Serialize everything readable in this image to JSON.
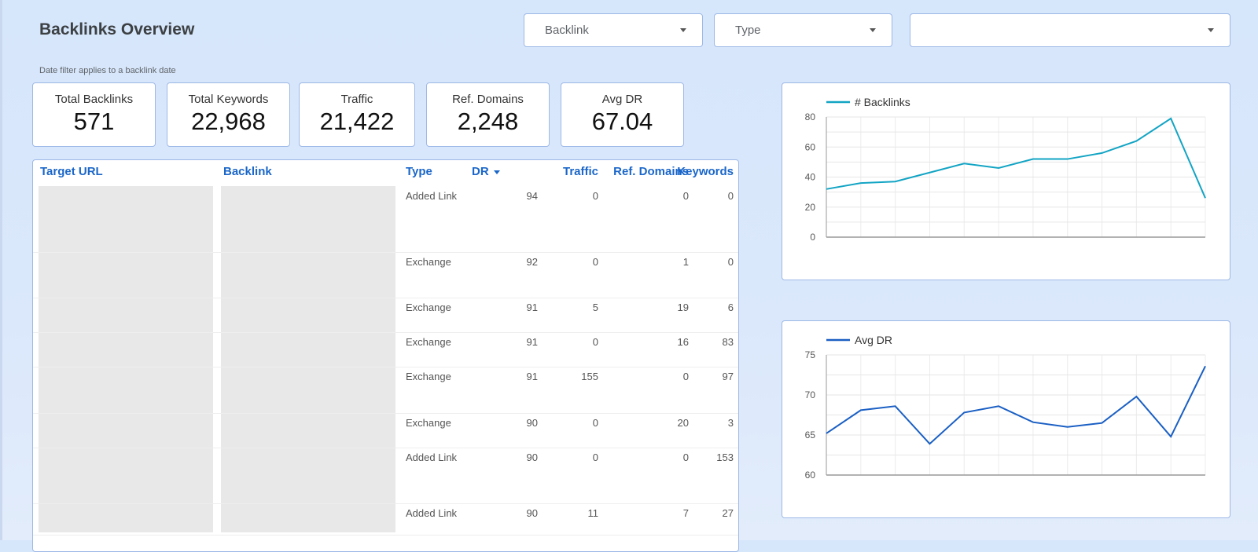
{
  "header": {
    "title": "Backlinks Overview",
    "note": "Date filter applies to a backlink date"
  },
  "filters": [
    {
      "label": "Backlink"
    },
    {
      "label": "Type"
    },
    {
      "label": ""
    }
  ],
  "kpis": [
    {
      "label": "Total Backlinks",
      "value": "571"
    },
    {
      "label": "Total Keywords",
      "value": "22,968"
    },
    {
      "label": "Traffic",
      "value": "21,422"
    },
    {
      "label": "Ref. Domains",
      "value": "2,248"
    },
    {
      "label": "Avg DR",
      "value": "67.04"
    }
  ],
  "table": {
    "columns": [
      "Target URL",
      "Backlink",
      "Type",
      "DR",
      "Traffic",
      "Ref. Domains",
      "Keywords"
    ],
    "rows": [
      {
        "type": "Added Link",
        "dr": "94",
        "traffic": "0",
        "ref_domains": "0",
        "keywords": "0"
      },
      {
        "type": "Exchange",
        "dr": "92",
        "traffic": "0",
        "ref_domains": "1",
        "keywords": "0"
      },
      {
        "type": "Exchange",
        "dr": "91",
        "traffic": "5",
        "ref_domains": "19",
        "keywords": "6"
      },
      {
        "type": "Exchange",
        "dr": "91",
        "traffic": "0",
        "ref_domains": "16",
        "keywords": "83"
      },
      {
        "type": "Exchange",
        "dr": "91",
        "traffic": "155",
        "ref_domains": "0",
        "keywords": "97"
      },
      {
        "type": "Exchange",
        "dr": "90",
        "traffic": "0",
        "ref_domains": "20",
        "keywords": "3"
      },
      {
        "type": "Added Link",
        "dr": "90",
        "traffic": "0",
        "ref_domains": "0",
        "keywords": "153"
      },
      {
        "type": "Added Link",
        "dr": "90",
        "traffic": "11",
        "ref_domains": "7",
        "keywords": "27"
      }
    ]
  },
  "colors": {
    "backlinks_line": "#12a4c4",
    "avgdr_line": "#1a5fc4",
    "accent": "#1a66c9"
  },
  "chart_data": [
    {
      "type": "line",
      "series": [
        {
          "name": "# Backlinks",
          "values": [
            32,
            36,
            37,
            43,
            49,
            46,
            52,
            52,
            56,
            64,
            79,
            26
          ]
        }
      ],
      "ylim": [
        0,
        80
      ],
      "yticks": [
        "0",
        "20",
        "40",
        "60",
        "80"
      ],
      "legend": "top-left",
      "grid": true
    },
    {
      "type": "line",
      "series": [
        {
          "name": "Avg DR",
          "values": [
            65.2,
            68.1,
            68.6,
            63.9,
            67.8,
            68.6,
            66.6,
            66.0,
            66.5,
            69.8,
            64.8,
            73.6
          ]
        }
      ],
      "ylim": [
        60,
        75
      ],
      "yticks": [
        "60",
        "65",
        "70",
        "75"
      ],
      "legend": "top-left",
      "grid": true
    }
  ]
}
